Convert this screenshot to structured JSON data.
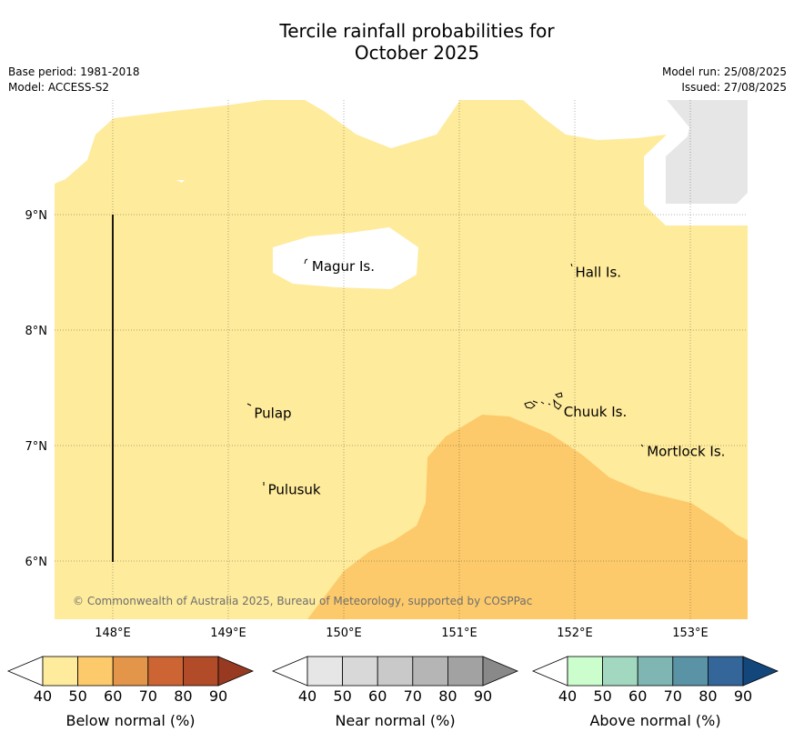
{
  "header": {
    "title_line1": "Tercile rainfall probabilities for",
    "title_line2": "October 2025",
    "base_period": "Base period: 1981-2018",
    "model": "Model: ACCESS-S2",
    "model_run": "Model run: 25/08/2025",
    "issued": "Issued: 27/08/2025"
  },
  "map": {
    "copyright": "© Commonwealth of Australia 2025, Bureau of Meteorology, supported by COSPPac",
    "lat_labels": [
      "9°N",
      "8°N",
      "7°N",
      "6°N"
    ],
    "lon_labels": [
      "148°E",
      "149°E",
      "150°E",
      "151°E",
      "152°E",
      "153°E"
    ],
    "places": [
      {
        "name": "Magur Is.",
        "lon": 149.7,
        "lat": 8.55
      },
      {
        "name": "Hall Is.",
        "lon": 151.98,
        "lat": 8.5
      },
      {
        "name": "Pulap",
        "lon": 149.2,
        "lat": 7.28
      },
      {
        "name": "Chuuk Is.",
        "lon": 151.88,
        "lat": 7.29
      },
      {
        "name": "Mortlock Is.",
        "lon": 152.6,
        "lat": 6.95
      },
      {
        "name": "Pulusuk",
        "lon": 149.32,
        "lat": 6.62
      }
    ],
    "colors": {
      "below_40_50": "#feeb9c",
      "below_50_60": "#fdca6b",
      "dry_season_mask": "#e6e6e6",
      "land_outline": "#000000"
    }
  },
  "colorbars": [
    {
      "label": "Below normal (%)",
      "ticks": [
        "40",
        "50",
        "60",
        "70",
        "80",
        "90"
      ],
      "colors": [
        "#ffffff",
        "#feeb9c",
        "#fdca6b",
        "#e3954a",
        "#cc6533",
        "#b24b28",
        "#983a22"
      ]
    },
    {
      "label": "Near normal (%)",
      "ticks": [
        "40",
        "50",
        "60",
        "70",
        "80",
        "90"
      ],
      "colors": [
        "#ffffff",
        "#e6e6e6",
        "#d8d8d8",
        "#c9c9c9",
        "#b5b5b5",
        "#a2a2a2",
        "#898989"
      ]
    },
    {
      "label": "Above normal (%)",
      "ticks": [
        "40",
        "50",
        "60",
        "70",
        "80",
        "90"
      ],
      "colors": [
        "#ffffff",
        "#ccfdcd",
        "#a3d8c0",
        "#7fb6b4",
        "#5b93a6",
        "#346699",
        "#13477c"
      ]
    }
  ]
}
